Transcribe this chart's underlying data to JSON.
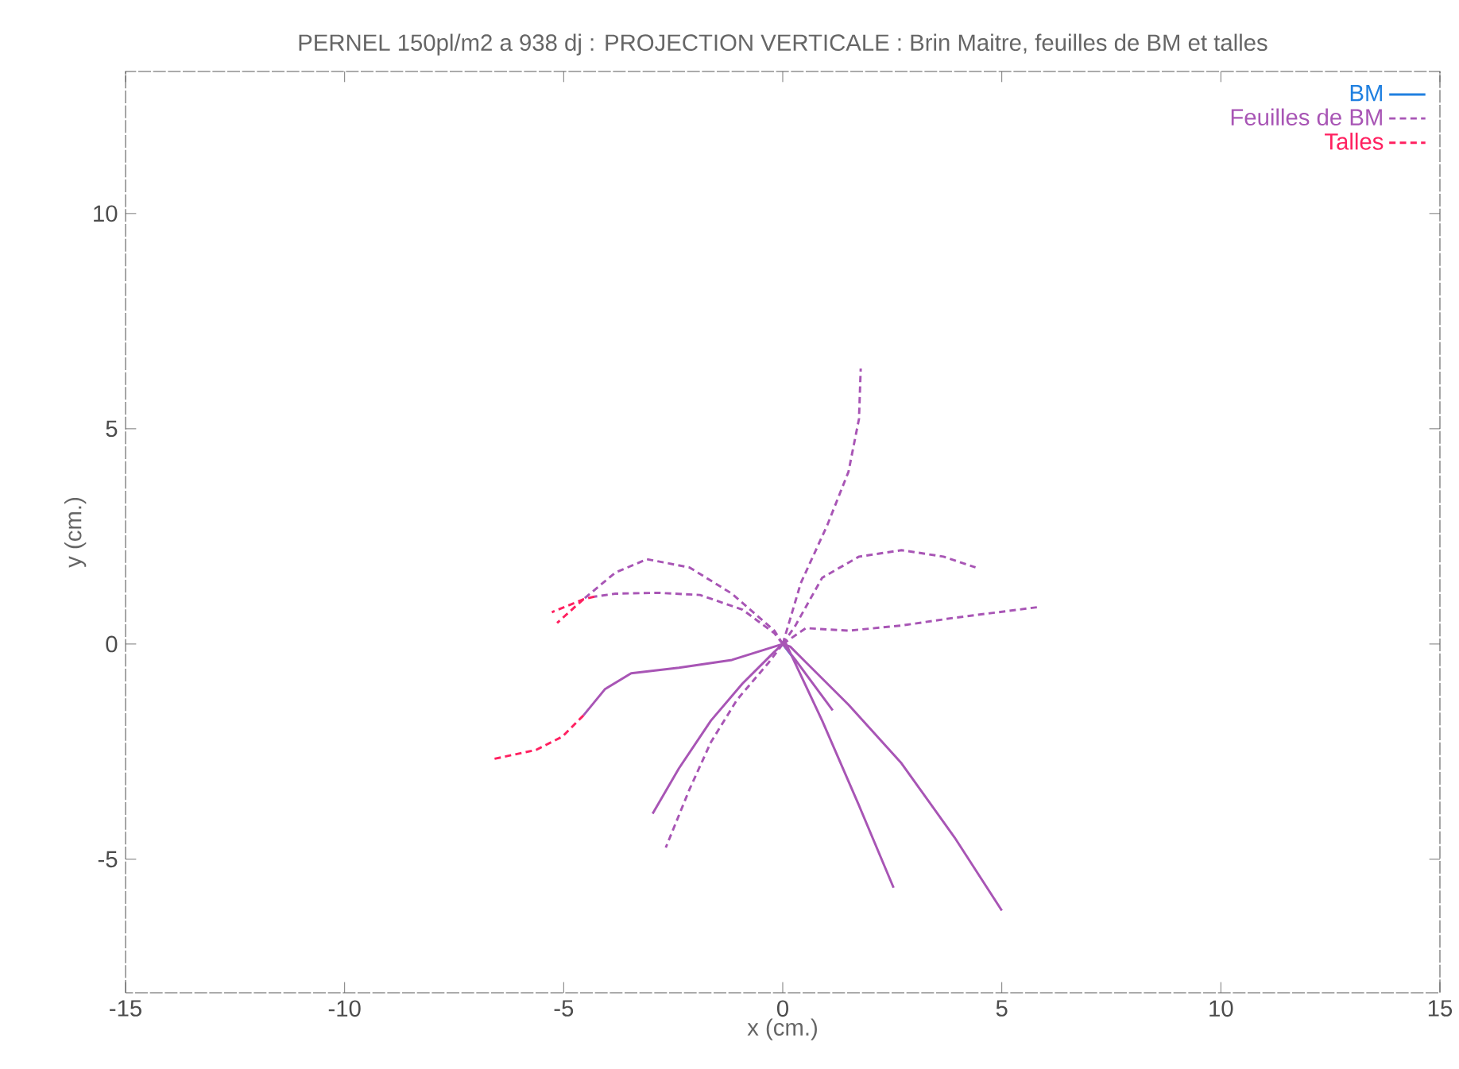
{
  "chart_data": {
    "type": "line",
    "title": "PERNEL 150pl/m2 a 938 dj : PROJECTION VERTICALE : Brin Maitre, feuilles de BM et talles",
    "xlabel": "x (cm.)",
    "ylabel": "y (cm.)",
    "xlim": [
      -15,
      15
    ],
    "ylim": [
      -8.1,
      13.3
    ],
    "xticks": [
      -15,
      -10,
      -5,
      0,
      5,
      10,
      15
    ],
    "yticks": [
      -5,
      0,
      5,
      10
    ],
    "grid": false,
    "legend": "top right",
    "marker": "none",
    "series": [
      {
        "name": "BM",
        "color": "#2080e0",
        "line_style": "solid",
        "x": [
          0,
          0.3
        ],
        "values": [
          0,
          -0.4
        ]
      },
      {
        "name": "Feuilles de BM",
        "color": "#a855b5",
        "line_style": "dashed",
        "x": [
          0,
          0.41,
          1.02,
          1.5,
          1.74,
          1.78,
          null,
          0,
          0.29,
          0.9,
          1.74,
          2.71,
          3.67,
          4.4,
          null,
          0,
          0.53,
          1.5,
          2.71,
          3.92,
          5.85,
          null,
          0,
          -0.19,
          -1.16,
          -2.13,
          -3.1,
          -3.82,
          -4.55,
          null,
          0,
          -0.19,
          -0.92,
          -1.89,
          -2.85,
          -3.82,
          -4.3,
          null,
          0,
          -0.32,
          -1.04,
          -1.64,
          -2.13,
          -2.67
        ],
        "values": [
          0,
          1.41,
          2.77,
          4.0,
          5.23,
          6.4,
          null,
          0,
          0.43,
          1.54,
          2.03,
          2.18,
          2.03,
          1.78,
          null,
          0,
          0.37,
          0.31,
          0.43,
          0.61,
          0.86,
          null,
          0,
          0.31,
          1.17,
          1.78,
          1.97,
          1.66,
          1.04,
          null,
          0,
          0.25,
          0.8,
          1.14,
          1.19,
          1.17,
          1.1,
          null,
          0,
          -0.43,
          -1.29,
          -2.28,
          -3.38,
          -4.73
        ]
      },
      {
        "color": "#a855b5",
        "line_style": "solid",
        "x": [
          0,
          -1.16,
          -2.37,
          -3.46,
          -4.06,
          -4.55,
          null,
          0,
          -0.19,
          -0.92,
          -1.64,
          -2.37,
          -2.97,
          null,
          0,
          0.05,
          0.9,
          1.74,
          2.53,
          null,
          0,
          0.17,
          1.5,
          2.71,
          3.92,
          5.0,
          null,
          0,
          0.29,
          1.14
        ],
        "values": [
          0,
          -0.37,
          -0.55,
          -0.68,
          -1.05,
          -1.66,
          null,
          0,
          -0.18,
          -0.92,
          -1.78,
          -2.89,
          -3.94,
          null,
          0,
          0.06,
          -1.78,
          -3.75,
          -5.66,
          null,
          0,
          -0.06,
          -1.41,
          -2.77,
          -4.49,
          -6.19,
          null,
          0,
          -0.37,
          -1.54
        ]
      },
      {
        "name": "Talles",
        "color": "#ff2060",
        "line_style": "dashed",
        "x": [
          -4.55,
          -5.15,
          null,
          -4.3,
          -4.55,
          -5.27,
          null,
          -4.55,
          -5.03,
          -5.63,
          -6.6
        ],
        "values": [
          1.04,
          0.49,
          null,
          1.1,
          1.04,
          0.74,
          null,
          -1.66,
          -2.15,
          -2.46,
          -2.67
        ]
      }
    ]
  }
}
